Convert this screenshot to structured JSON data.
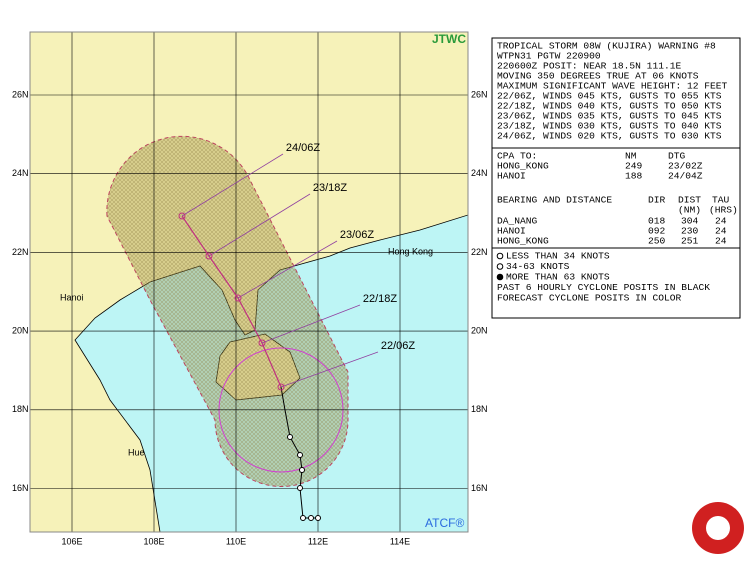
{
  "header": {
    "agency": "JTWC",
    "footer": "ATCF®"
  },
  "map": {
    "lat_labels": [
      "26N",
      "24N",
      "22N",
      "20N",
      "18N",
      "16N"
    ],
    "lon_labels": [
      "106E",
      "108E",
      "110E",
      "112E",
      "114E"
    ],
    "places": [
      "Hanoi",
      "Hue",
      "Hong Kong"
    ],
    "forecast_times": [
      "22/06Z",
      "22/18Z",
      "23/06Z",
      "23/18Z",
      "24/06Z"
    ]
  },
  "warning": {
    "lines": [
      "TROPICAL STORM 08W (KUJIRA) WARNING #8",
      "WTPN31 PGTW 220900",
      "220600Z POSIT: NEAR 18.5N 111.1E",
      "MOVING 350 DEGREES TRUE AT 06 KNOTS",
      "MAXIMUM SIGNIFICANT WAVE HEIGHT: 12 FEET",
      "22/06Z, WINDS 045 KTS, GUSTS TO 055 KTS",
      "22/18Z, WINDS 040 KTS, GUSTS TO 050 KTS",
      "23/06Z, WINDS 035 KTS, GUSTS TO 045 KTS",
      "23/18Z, WINDS 030 KTS, GUSTS TO 040 KTS",
      "24/06Z, WINDS 020 KTS, GUSTS TO 030 KTS"
    ],
    "cpa": {
      "header": [
        "CPA TO:",
        "NM",
        "DTG"
      ],
      "rows": [
        [
          "HONG_KONG",
          "249",
          "23/02Z"
        ],
        [
          "HANOI",
          "188",
          "24/04Z"
        ]
      ]
    },
    "bearing": {
      "header": [
        "BEARING AND DISTANCE",
        "DIR",
        "DIST",
        "TAU"
      ],
      "subheader": [
        "(NM)",
        "(HRS)"
      ],
      "rows": [
        [
          "DA_NANG",
          "018",
          "304",
          "24"
        ],
        [
          "HANOI",
          "092",
          "230",
          "24"
        ],
        [
          "HONG_KONG",
          "250",
          "251",
          "24"
        ]
      ]
    },
    "legend": [
      "LESS THAN 34 KNOTS",
      "34-63 KNOTS",
      "MORE THAN 63 KNOTS",
      "PAST 6 HOURLY CYCLONE POSITS IN BLACK",
      "FORECAST CYCLONE POSITS IN COLOR"
    ]
  }
}
